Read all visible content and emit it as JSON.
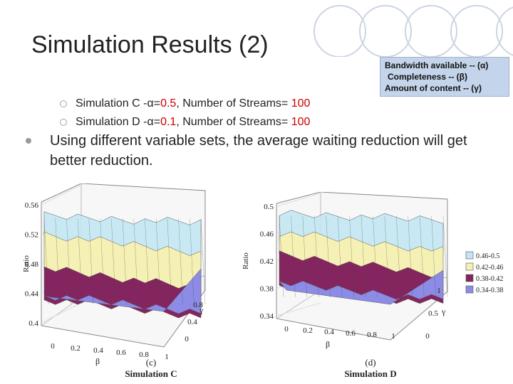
{
  "slide": {
    "title": "Simulation Results (2)",
    "legend_box": {
      "line1": "Bandwidth available -- (α)",
      "line2": "Completeness -- (β)",
      "line3": "Amount of content -- (γ)"
    },
    "bullets": [
      {
        "prefix": "Simulation C -α=",
        "alpha": "0.5",
        "mid": ", Number of Streams= ",
        "streams": "100"
      },
      {
        "prefix": "Simulation D -α=",
        "alpha": "0.1",
        "mid": ", Number of Streams= ",
        "streams": "100"
      }
    ],
    "main_bullet": "Using different variable sets, the average waiting reduction will get better reduction."
  },
  "colors": {
    "accent_red": "#cc0000",
    "band_cyan": "#bfe6f2",
    "band_yellow": "#f5f0b4",
    "band_maroon": "#842560",
    "band_blue": "#8c8ce6"
  },
  "chart_data": [
    {
      "type": "surface3d",
      "title": "Simulation C",
      "panel_label": "(c)",
      "ylabel": "Ratio",
      "xlabel": "β",
      "depth_label": "γ",
      "ylim": [
        0.4,
        0.56
      ],
      "y_ticks": [
        "0.56",
        "0.52",
        "0.48",
        "0.44",
        "0.4"
      ],
      "x_ticks": [
        "0",
        "0.2",
        "0.4",
        "0.6",
        "0.8",
        "1"
      ],
      "depth_ticks": [
        "0",
        "0.4",
        "0.8"
      ]
    },
    {
      "type": "surface3d",
      "title": "Simulation D",
      "panel_label": "(d)",
      "ylabel": "Ratio",
      "xlabel": "β",
      "depth_label": "γ",
      "ylim": [
        0.34,
        0.5
      ],
      "y_ticks": [
        "0.5",
        "0.46",
        "0.42",
        "0.38",
        "0.34"
      ],
      "x_ticks": [
        "0",
        "0.2",
        "0.4",
        "0.6",
        "0.8",
        "1"
      ],
      "depth_ticks": [
        "0",
        "0.5",
        "1"
      ]
    }
  ],
  "surface_legend": {
    "entries": [
      "0.46-0.5",
      "0.42-0.46",
      "0.38-0.42",
      "0.34-0.38"
    ],
    "colors": [
      "#bfe6f2",
      "#f5f0b4",
      "#842560",
      "#8c8ce6"
    ]
  }
}
